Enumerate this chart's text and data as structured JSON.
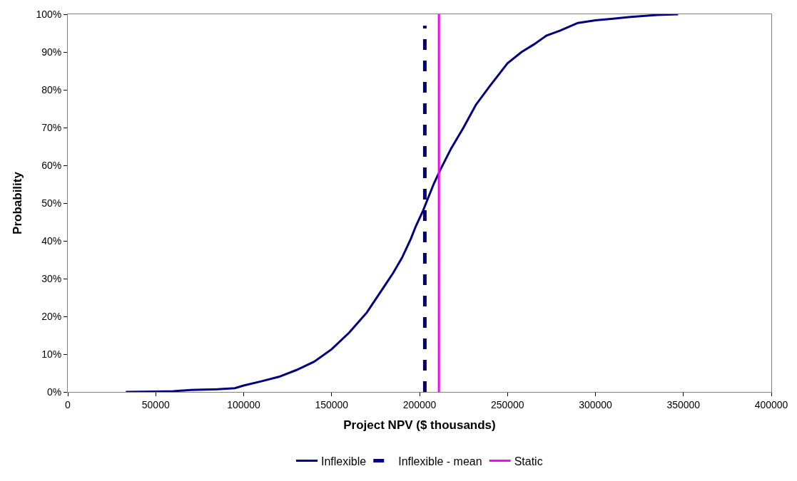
{
  "chart_data": {
    "type": "line",
    "xlabel": "Project NPV ($ thousands)",
    "ylabel": "Probability",
    "xlim": [
      0,
      400000
    ],
    "xticks": [
      0,
      50000,
      100000,
      150000,
      200000,
      250000,
      300000,
      350000,
      400000
    ],
    "ylim": [
      0,
      1
    ],
    "yticks": [
      {
        "value": 0,
        "label": "0%"
      },
      {
        "value": 0.1,
        "label": "10%"
      },
      {
        "value": 0.2,
        "label": "20%"
      },
      {
        "value": 0.3,
        "label": "30%"
      },
      {
        "value": 0.4,
        "label": "40%"
      },
      {
        "value": 0.5,
        "label": "50%"
      },
      {
        "value": 0.6,
        "label": "60%"
      },
      {
        "value": 0.7,
        "label": "70%"
      },
      {
        "value": 0.8,
        "label": "80%"
      },
      {
        "value": 0.9,
        "label": "90%"
      },
      {
        "value": 1,
        "label": "100%"
      }
    ],
    "grid": false,
    "legend": "bottom",
    "marker": "none",
    "series": [
      {
        "name": "Inflexible",
        "color": "#000080",
        "line_style": "solid",
        "x": [
          33000,
          50000,
          60000,
          70000,
          85000,
          95000,
          100000,
          110000,
          120000,
          130000,
          140000,
          150000,
          160000,
          170000,
          180000,
          185000,
          190000,
          195000,
          198000,
          202000,
          205000,
          208000,
          212000,
          218000,
          225000,
          232000,
          240000,
          250000,
          258000,
          265000,
          272000,
          280000,
          290000,
          300000,
          310000,
          320000,
          335000,
          347000
        ],
        "values": [
          0,
          0.001,
          0.002,
          0.005,
          0.007,
          0.01,
          0.017,
          0.028,
          0.04,
          0.058,
          0.08,
          0.113,
          0.157,
          0.21,
          0.28,
          0.315,
          0.355,
          0.405,
          0.44,
          0.48,
          0.515,
          0.55,
          0.59,
          0.645,
          0.7,
          0.76,
          0.81,
          0.87,
          0.9,
          0.92,
          0.943,
          0.957,
          0.977,
          0.984,
          0.988,
          0.993,
          0.998,
          1
        ]
      },
      {
        "name": "Inflexible - mean",
        "color": "#000080",
        "line_style": "dashed",
        "x": [
          203000,
          203000
        ],
        "values": [
          0,
          0.97
        ]
      },
      {
        "name": "Static",
        "color": "#ff00ff",
        "line_style": "solid",
        "x": [
          211000,
          211000
        ],
        "values": [
          0,
          1
        ]
      }
    ]
  }
}
